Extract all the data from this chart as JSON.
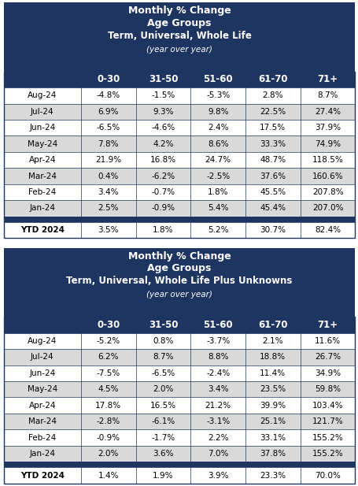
{
  "table1": {
    "title_lines": [
      "Monthly % Change",
      "Age Groups",
      "Term, Universal, Whole Life",
      "(year over year)"
    ],
    "title_bold": [
      true,
      true,
      true,
      false
    ],
    "title_italic": [
      false,
      false,
      false,
      true
    ],
    "columns": [
      "",
      "0-30",
      "31-50",
      "51-60",
      "61-70",
      "71+"
    ],
    "rows": [
      [
        "Aug-24",
        "-4.8%",
        "-1.5%",
        "-5.3%",
        "2.8%",
        "8.7%"
      ],
      [
        "Jul-24",
        "6.9%",
        "9.3%",
        "9.8%",
        "22.5%",
        "27.4%"
      ],
      [
        "Jun-24",
        "-6.5%",
        "-4.6%",
        "2.4%",
        "17.5%",
        "37.9%"
      ],
      [
        "May-24",
        "7.8%",
        "4.2%",
        "8.6%",
        "33.3%",
        "74.9%"
      ],
      [
        "Apr-24",
        "21.9%",
        "16.8%",
        "24.7%",
        "48.7%",
        "118.5%"
      ],
      [
        "Mar-24",
        "0.4%",
        "-6.2%",
        "-2.5%",
        "37.6%",
        "160.6%"
      ],
      [
        "Feb-24",
        "3.4%",
        "-0.7%",
        "1.8%",
        "45.5%",
        "207.8%"
      ],
      [
        "Jan-24",
        "2.5%",
        "-0.9%",
        "5.4%",
        "45.4%",
        "207.0%"
      ]
    ],
    "ytd_row": [
      "YTD 2024",
      "3.5%",
      "1.8%",
      "5.2%",
      "30.7%",
      "82.4%"
    ]
  },
  "table2": {
    "title_lines": [
      "Monthly % Change",
      "Age Groups",
      "Term, Universal, Whole Life Plus Unknowns",
      "(year over year)"
    ],
    "title_bold": [
      true,
      true,
      true,
      false
    ],
    "title_italic": [
      false,
      false,
      false,
      true
    ],
    "columns": [
      "",
      "0-30",
      "31-50",
      "51-60",
      "61-70",
      "71+"
    ],
    "rows": [
      [
        "Aug-24",
        "-5.2%",
        "0.8%",
        "-3.7%",
        "2.1%",
        "11.6%"
      ],
      [
        "Jul-24",
        "6.2%",
        "8.7%",
        "8.8%",
        "18.8%",
        "26.7%"
      ],
      [
        "Jun-24",
        "-7.5%",
        "-6.5%",
        "-2.4%",
        "11.4%",
        "34.9%"
      ],
      [
        "May-24",
        "4.5%",
        "2.0%",
        "3.4%",
        "23.5%",
        "59.8%"
      ],
      [
        "Apr-24",
        "17.8%",
        "16.5%",
        "21.2%",
        "39.9%",
        "103.4%"
      ],
      [
        "Mar-24",
        "-2.8%",
        "-6.1%",
        "-3.1%",
        "25.1%",
        "121.7%"
      ],
      [
        "Feb-24",
        "-0.9%",
        "-1.7%",
        "2.2%",
        "33.1%",
        "155.2%"
      ],
      [
        "Jan-24",
        "2.0%",
        "3.6%",
        "7.0%",
        "37.8%",
        "155.2%"
      ]
    ],
    "ytd_row": [
      "YTD 2024",
      "1.4%",
      "1.9%",
      "3.9%",
      "23.3%",
      "70.0%"
    ]
  },
  "header_bg": "#1e3461",
  "header_text": "#ffffff",
  "col_header_bg": "#1e3461",
  "col_header_text": "#ffffff",
  "row_bg_odd": "#ffffff",
  "row_bg_even": "#d9d9d9",
  "ytd_bg": "#ffffff",
  "separator_bg": "#1e3461",
  "cell_text": "#000000",
  "border_color": "#1e3461",
  "fig_width": 4.56,
  "fig_height": 6.17,
  "dpi": 100
}
